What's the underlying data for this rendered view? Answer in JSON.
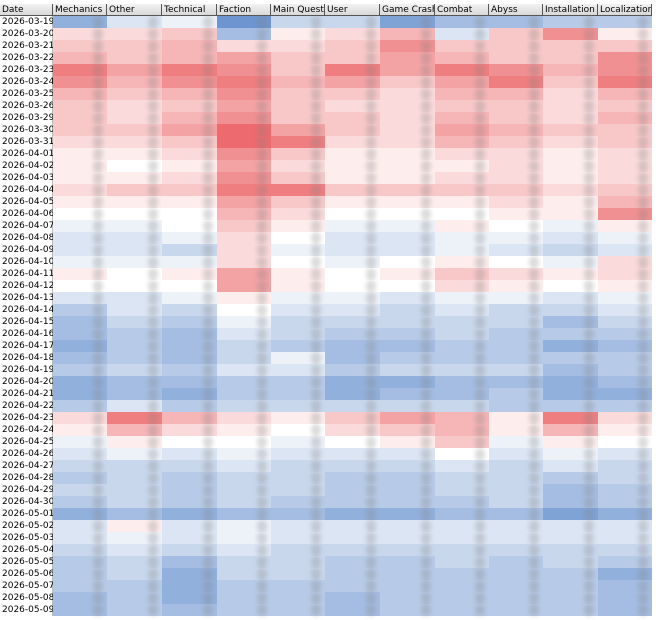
{
  "table": {
    "columns": [
      "Date",
      "Mechanics",
      "Other",
      "Technical",
      "Faction",
      "Main Quest",
      "User",
      "Game Crash",
      "Combat",
      "Abyss",
      "Installation",
      "Localization"
    ],
    "color_scale": {
      "negative": "#4a7bc4",
      "zero": "#ffffff",
      "positive": "#e8464a"
    },
    "rows": [
      {
        "date": "2026-03-19",
        "values": [
          -0.6,
          -0.2,
          -0.1,
          -0.8,
          -0.3,
          -0.3,
          -0.7,
          -0.5,
          -0.5,
          -0.4,
          -0.4
        ]
      },
      {
        "date": "2026-03-20",
        "values": [
          0.2,
          0.2,
          0.3,
          -0.5,
          0.1,
          0.2,
          0.4,
          -0.2,
          0.3,
          0.6,
          0.1
        ]
      },
      {
        "date": "2026-03-21",
        "values": [
          0.3,
          0.3,
          0.4,
          0.2,
          0.2,
          0.3,
          0.6,
          0.3,
          0.3,
          0.3,
          0.3
        ]
      },
      {
        "date": "2026-03-22",
        "values": [
          0.4,
          0.3,
          0.4,
          0.5,
          0.3,
          0.3,
          0.5,
          0.4,
          0.3,
          0.3,
          0.6
        ]
      },
      {
        "date": "2026-03-23",
        "values": [
          0.7,
          0.5,
          0.7,
          0.6,
          0.3,
          0.7,
          0.5,
          0.7,
          0.6,
          0.4,
          0.6
        ]
      },
      {
        "date": "2026-03-24",
        "values": [
          0.6,
          0.4,
          0.6,
          0.7,
          0.4,
          0.5,
          0.3,
          0.5,
          0.7,
          0.3,
          0.7
        ]
      },
      {
        "date": "2026-03-25",
        "values": [
          0.4,
          0.3,
          0.4,
          0.6,
          0.3,
          0.3,
          0.2,
          0.4,
          0.4,
          0.2,
          0.4
        ]
      },
      {
        "date": "2026-03-26",
        "values": [
          0.3,
          0.2,
          0.3,
          0.5,
          0.3,
          0.2,
          0.2,
          0.3,
          0.3,
          0.2,
          0.3
        ]
      },
      {
        "date": "2026-03-29",
        "values": [
          0.3,
          0.2,
          0.4,
          0.6,
          0.3,
          0.3,
          0.2,
          0.4,
          0.3,
          0.2,
          0.4
        ]
      },
      {
        "date": "2026-03-30",
        "values": [
          0.3,
          0.3,
          0.5,
          0.8,
          0.5,
          0.3,
          0.2,
          0.5,
          0.4,
          0.3,
          0.3
        ]
      },
      {
        "date": "2026-03-31",
        "values": [
          0.2,
          0.2,
          0.3,
          0.8,
          0.7,
          0.2,
          0.2,
          0.4,
          0.3,
          0.2,
          0.3
        ]
      },
      {
        "date": "2026-04-01",
        "values": [
          0.1,
          0.1,
          0.2,
          0.6,
          0.3,
          0.1,
          0.1,
          0.2,
          0.2,
          0.1,
          0.2
        ]
      },
      {
        "date": "2026-04-02",
        "values": [
          0.1,
          0,
          0.1,
          0.5,
          0.2,
          0.1,
          0.1,
          0.1,
          0.2,
          0.1,
          0.2
        ]
      },
      {
        "date": "2026-04-03",
        "values": [
          0.1,
          0.1,
          0.2,
          0.6,
          0.3,
          0.1,
          0.1,
          0.2,
          0.2,
          0.1,
          0.2
        ]
      },
      {
        "date": "2026-04-04",
        "values": [
          0.2,
          0.3,
          0.3,
          0.7,
          0.7,
          0.3,
          0.3,
          0.3,
          0.3,
          0.2,
          0.3
        ]
      },
      {
        "date": "2026-04-05",
        "values": [
          0.1,
          0.1,
          0.1,
          0.5,
          0.3,
          0.1,
          0.1,
          0.1,
          0.2,
          0.1,
          0.4
        ]
      },
      {
        "date": "2026-04-06",
        "values": [
          0,
          0,
          0,
          0.4,
          0.2,
          0,
          0,
          0,
          0.1,
          0.1,
          0.6
        ]
      },
      {
        "date": "2026-04-07",
        "values": [
          -0.1,
          -0.1,
          0,
          0.3,
          0.1,
          -0.1,
          -0.1,
          0.1,
          0,
          -0.1,
          0.1
        ]
      },
      {
        "date": "2026-04-08",
        "values": [
          -0.2,
          -0.2,
          -0.1,
          0.2,
          0,
          -0.2,
          -0.2,
          -0.1,
          -0.1,
          -0.2,
          -0.1
        ]
      },
      {
        "date": "2026-04-09",
        "values": [
          -0.2,
          -0.2,
          -0.3,
          0.2,
          -0.1,
          -0.2,
          -0.2,
          -0.1,
          -0.2,
          -0.3,
          -0.2
        ]
      },
      {
        "date": "2026-04-10",
        "values": [
          -0.1,
          -0.1,
          -0.1,
          0.2,
          0,
          -0.1,
          0,
          0.1,
          0,
          -0.1,
          0.2
        ]
      },
      {
        "date": "2026-04-11",
        "values": [
          0.1,
          0,
          0.1,
          0.5,
          0.1,
          0,
          0.1,
          0.3,
          0.2,
          0.1,
          0.2
        ]
      },
      {
        "date": "2026-04-12",
        "values": [
          0,
          0,
          0,
          0.5,
          0.1,
          0,
          0,
          0.2,
          0.1,
          0,
          0.1
        ]
      },
      {
        "date": "2026-04-13",
        "values": [
          -0.2,
          -0.2,
          -0.1,
          0.1,
          -0.1,
          -0.1,
          -0.2,
          -0.1,
          -0.1,
          -0.2,
          -0.1
        ]
      },
      {
        "date": "2026-04-14",
        "values": [
          -0.4,
          -0.2,
          -0.3,
          0,
          -0.2,
          -0.2,
          -0.3,
          -0.2,
          -0.3,
          -0.3,
          -0.2
        ]
      },
      {
        "date": "2026-04-15",
        "values": [
          -0.5,
          -0.3,
          -0.4,
          -0.1,
          -0.3,
          -0.3,
          -0.3,
          -0.3,
          -0.3,
          -0.5,
          -0.3
        ]
      },
      {
        "date": "2026-04-16",
        "values": [
          -0.5,
          -0.4,
          -0.5,
          -0.2,
          -0.3,
          -0.4,
          -0.4,
          -0.3,
          -0.4,
          -0.4,
          -0.4
        ]
      },
      {
        "date": "2026-04-17",
        "values": [
          -0.6,
          -0.4,
          -0.5,
          -0.3,
          -0.4,
          -0.5,
          -0.5,
          -0.4,
          -0.4,
          -0.6,
          -0.5
        ]
      },
      {
        "date": "2026-04-18",
        "values": [
          -0.5,
          -0.4,
          -0.5,
          -0.3,
          -0.1,
          -0.5,
          -0.4,
          -0.4,
          -0.4,
          -0.4,
          -0.4
        ]
      },
      {
        "date": "2026-04-19",
        "values": [
          -0.4,
          -0.3,
          -0.4,
          -0.2,
          -0.2,
          -0.4,
          -0.3,
          -0.3,
          -0.3,
          -0.5,
          -0.4
        ]
      },
      {
        "date": "2026-04-20",
        "values": [
          -0.6,
          -0.5,
          -0.5,
          -0.4,
          -0.4,
          -0.6,
          -0.6,
          -0.5,
          -0.5,
          -0.6,
          -0.5
        ]
      },
      {
        "date": "2026-04-21",
        "values": [
          -0.6,
          -0.5,
          -0.6,
          -0.4,
          -0.4,
          -0.6,
          -0.5,
          -0.5,
          -0.4,
          -0.6,
          -0.6
        ]
      },
      {
        "date": "2026-04-22",
        "values": [
          -0.4,
          -0.2,
          -0.4,
          -0.3,
          -0.3,
          -0.3,
          -0.3,
          -0.3,
          -0.4,
          -0.4,
          -0.4
        ]
      },
      {
        "date": "2026-04-23",
        "values": [
          0.2,
          0.7,
          0.4,
          0.2,
          0.1,
          0.3,
          0.5,
          0.4,
          0.1,
          0.7,
          0.2
        ]
      },
      {
        "date": "2026-04-24",
        "values": [
          0.1,
          0.4,
          0.2,
          0.1,
          0,
          0.2,
          0.3,
          0.4,
          0.1,
          0.4,
          0.1
        ]
      },
      {
        "date": "2026-04-25",
        "values": [
          -0.1,
          0.1,
          0,
          0,
          -0.1,
          0,
          0.1,
          0.3,
          -0.1,
          0.1,
          0
        ]
      },
      {
        "date": "2026-04-26",
        "values": [
          -0.2,
          -0.1,
          -0.2,
          -0.1,
          -0.2,
          -0.2,
          -0.2,
          0,
          -0.2,
          -0.1,
          -0.2
        ]
      },
      {
        "date": "2026-04-27",
        "values": [
          -0.3,
          -0.3,
          -0.3,
          -0.2,
          -0.3,
          -0.3,
          -0.3,
          -0.2,
          -0.3,
          -0.2,
          -0.3
        ]
      },
      {
        "date": "2026-04-28",
        "values": [
          -0.4,
          -0.3,
          -0.4,
          -0.3,
          -0.3,
          -0.4,
          -0.4,
          -0.3,
          -0.3,
          -0.4,
          -0.3
        ]
      },
      {
        "date": "2026-04-29",
        "values": [
          -0.3,
          -0.3,
          -0.4,
          -0.3,
          -0.3,
          -0.4,
          -0.4,
          -0.3,
          -0.3,
          -0.5,
          -0.4
        ]
      },
      {
        "date": "2026-04-30",
        "values": [
          -0.4,
          -0.3,
          -0.4,
          -0.3,
          -0.4,
          -0.4,
          -0.4,
          -0.4,
          -0.3,
          -0.5,
          -0.4
        ]
      },
      {
        "date": "2026-05-01",
        "values": [
          -0.6,
          -0.5,
          -0.6,
          -0.5,
          -0.5,
          -0.6,
          -0.6,
          -0.5,
          -0.5,
          -0.7,
          -0.6
        ]
      },
      {
        "date": "2026-05-02",
        "values": [
          -0.2,
          0.1,
          -0.2,
          -0.1,
          -0.2,
          -0.2,
          -0.2,
          -0.2,
          -0.2,
          -0.2,
          -0.2
        ]
      },
      {
        "date": "2026-05-03",
        "values": [
          -0.2,
          -0.1,
          -0.2,
          -0.1,
          -0.2,
          -0.2,
          -0.2,
          -0.2,
          -0.2,
          -0.2,
          -0.2
        ]
      },
      {
        "date": "2026-05-04",
        "values": [
          -0.3,
          -0.2,
          -0.3,
          -0.2,
          -0.3,
          -0.3,
          -0.3,
          -0.3,
          -0.3,
          -0.3,
          -0.3
        ]
      },
      {
        "date": "2026-05-05",
        "values": [
          -0.4,
          -0.3,
          -0.5,
          -0.3,
          -0.3,
          -0.4,
          -0.4,
          -0.3,
          -0.4,
          -0.3,
          -0.4
        ]
      },
      {
        "date": "2026-05-06",
        "values": [
          -0.4,
          -0.3,
          -0.6,
          -0.3,
          -0.3,
          -0.4,
          -0.4,
          -0.4,
          -0.4,
          -0.4,
          -0.6
        ]
      },
      {
        "date": "2026-05-07",
        "values": [
          -0.4,
          -0.4,
          -0.6,
          -0.4,
          -0.4,
          -0.4,
          -0.4,
          -0.4,
          -0.4,
          -0.4,
          -0.5
        ]
      },
      {
        "date": "2026-05-08",
        "values": [
          -0.5,
          -0.4,
          -0.6,
          -0.4,
          -0.4,
          -0.5,
          -0.4,
          -0.4,
          -0.4,
          -0.4,
          -0.5
        ]
      },
      {
        "date": "2026-05-09",
        "values": [
          -0.5,
          -0.4,
          -0.5,
          -0.4,
          -0.4,
          -0.5,
          -0.4,
          -0.4,
          -0.4,
          -0.4,
          -0.5
        ]
      }
    ]
  }
}
